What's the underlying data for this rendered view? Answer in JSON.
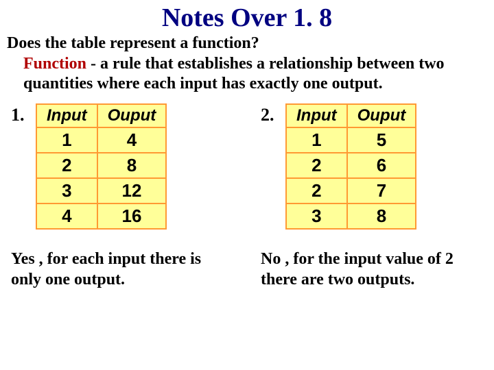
{
  "title": "Notes Over 1. 8",
  "question": "Does the table represent a function?",
  "definition": {
    "term": "Function",
    "body": " -  a rule that establishes a relationship between two quantities where each input has exactly one output."
  },
  "tables": {
    "header_input": "Input",
    "header_output": "Ouput",
    "col_width_input": 95,
    "col_width_output": 110,
    "bg_color": "#ffff99",
    "border_color": "#ff9933",
    "header_fontsize": 24,
    "cell_fontsize": 26
  },
  "example1": {
    "number": "1.",
    "rows": [
      {
        "in": "1",
        "out": "4"
      },
      {
        "in": "2",
        "out": "8"
      },
      {
        "in": "3",
        "out": "12"
      },
      {
        "in": "4",
        "out": "16"
      }
    ],
    "answer_lead": "Yes",
    "answer_rest": " , for each input there is only one output."
  },
  "example2": {
    "number": "2.",
    "rows": [
      {
        "in": "1",
        "out": "5"
      },
      {
        "in": "2",
        "out": "6"
      },
      {
        "in": "2",
        "out": "7"
      },
      {
        "in": "3",
        "out": "8"
      }
    ],
    "answer_lead": "No",
    "answer_rest": " , for the input value of 2 there are two outputs."
  },
  "colors": {
    "title": "#000080",
    "term": "#b00000",
    "text": "#000000"
  }
}
